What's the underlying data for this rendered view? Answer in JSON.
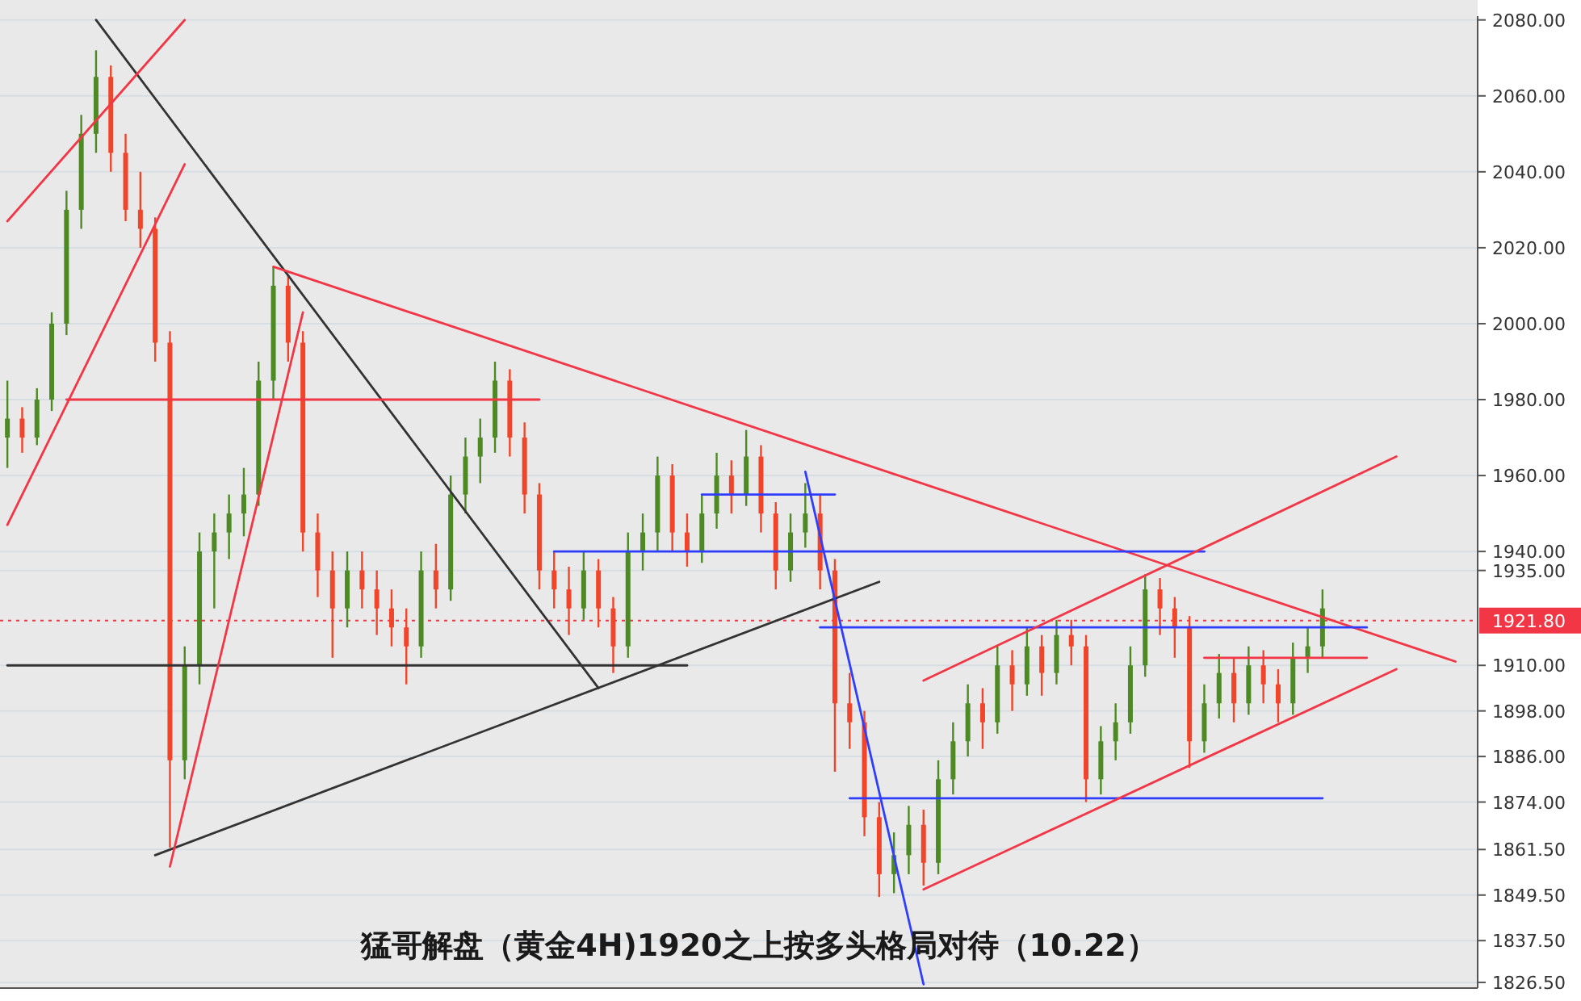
{
  "chart_data": {
    "type": "candlestick",
    "title": "猛哥解盘（黄金4H)1920之上按多头格局对待（10.22）",
    "categories": [
      null,
      null,
      null,
      null,
      null,
      null,
      null,
      null,
      null,
      null,
      null,
      null,
      null,
      null,
      null,
      null,
      null,
      null,
      null,
      null,
      null,
      null,
      null,
      null,
      null,
      null,
      null,
      null,
      null,
      null,
      null,
      null,
      null,
      null,
      null,
      null,
      null,
      null,
      null,
      null,
      null,
      null,
      null,
      null,
      null,
      null,
      null,
      null,
      null,
      null,
      null,
      null,
      null,
      null,
      null,
      null,
      null,
      null,
      null,
      null,
      null,
      null,
      null,
      null,
      null,
      null,
      null,
      null,
      null,
      null,
      null,
      null,
      null,
      null,
      null,
      null,
      null,
      null,
      null,
      null,
      null,
      null,
      null,
      null,
      null,
      null,
      null,
      null,
      null,
      null,
      null,
      null,
      null,
      null,
      null,
      null,
      null,
      null,
      null,
      null
    ],
    "ohlc": [
      [
        1970,
        1985,
        1962,
        1975
      ],
      [
        1975,
        1978,
        1966,
        1970
      ],
      [
        1970,
        1983,
        1968,
        1980
      ],
      [
        1980,
        2003,
        1977,
        2000
      ],
      [
        2000,
        2035,
        1997,
        2030
      ],
      [
        2030,
        2055,
        2025,
        2050
      ],
      [
        2050,
        2072,
        2045,
        2065
      ],
      [
        2065,
        2068,
        2040,
        2045
      ],
      [
        2045,
        2050,
        2027,
        2030
      ],
      [
        2030,
        2040,
        2020,
        2025
      ],
      [
        2025,
        2028,
        1990,
        1995
      ],
      [
        1995,
        1998,
        1862,
        1885
      ],
      [
        1885,
        1915,
        1880,
        1910
      ],
      [
        1910,
        1945,
        1905,
        1940
      ],
      [
        1940,
        1950,
        1925,
        1945
      ],
      [
        1945,
        1955,
        1938,
        1950
      ],
      [
        1950,
        1962,
        1944,
        1955
      ],
      [
        1955,
        1990,
        1952,
        1985
      ],
      [
        1985,
        2015,
        1980,
        2010
      ],
      [
        2010,
        2013,
        1990,
        1995
      ],
      [
        1995,
        1998,
        1940,
        1945
      ],
      [
        1945,
        1950,
        1928,
        1935
      ],
      [
        1935,
        1940,
        1912,
        1925
      ],
      [
        1925,
        1940,
        1920,
        1935
      ],
      [
        1935,
        1940,
        1925,
        1930
      ],
      [
        1930,
        1935,
        1918,
        1925
      ],
      [
        1925,
        1930,
        1915,
        1920
      ],
      [
        1920,
        1925,
        1905,
        1915
      ],
      [
        1915,
        1940,
        1912,
        1935
      ],
      [
        1935,
        1942,
        1925,
        1930
      ],
      [
        1930,
        1960,
        1927,
        1955
      ],
      [
        1955,
        1970,
        1950,
        1965
      ],
      [
        1965,
        1975,
        1958,
        1970
      ],
      [
        1970,
        1990,
        1966,
        1985
      ],
      [
        1985,
        1988,
        1965,
        1970
      ],
      [
        1970,
        1974,
        1950,
        1955
      ],
      [
        1955,
        1958,
        1930,
        1935
      ],
      [
        1935,
        1940,
        1925,
        1930
      ],
      [
        1930,
        1936,
        1918,
        1925
      ],
      [
        1925,
        1940,
        1922,
        1935
      ],
      [
        1935,
        1938,
        1920,
        1925
      ],
      [
        1925,
        1928,
        1908,
        1915
      ],
      [
        1915,
        1945,
        1912,
        1940
      ],
      [
        1940,
        1950,
        1935,
        1945
      ],
      [
        1945,
        1965,
        1940,
        1960
      ],
      [
        1960,
        1963,
        1940,
        1945
      ],
      [
        1945,
        1950,
        1936,
        1940
      ],
      [
        1940,
        1955,
        1937,
        1950
      ],
      [
        1950,
        1966,
        1946,
        1960
      ],
      [
        1960,
        1964,
        1950,
        1955
      ],
      [
        1955,
        1972,
        1952,
        1965
      ],
      [
        1965,
        1968,
        1945,
        1950
      ],
      [
        1950,
        1953,
        1930,
        1935
      ],
      [
        1935,
        1950,
        1932,
        1945
      ],
      [
        1945,
        1958,
        1941,
        1950
      ],
      [
        1950,
        1955,
        1930,
        1935
      ],
      [
        1935,
        1938,
        1882,
        1900
      ],
      [
        1900,
        1908,
        1888,
        1895
      ],
      [
        1895,
        1898,
        1865,
        1870
      ],
      [
        1870,
        1874,
        1849,
        1855
      ],
      [
        1855,
        1866,
        1850,
        1860
      ],
      [
        1860,
        1873,
        1855,
        1868
      ],
      [
        1868,
        1872,
        1852,
        1858
      ],
      [
        1858,
        1885,
        1855,
        1880
      ],
      [
        1880,
        1895,
        1876,
        1890
      ],
      [
        1890,
        1905,
        1886,
        1900
      ],
      [
        1900,
        1904,
        1888,
        1895
      ],
      [
        1895,
        1915,
        1892,
        1910
      ],
      [
        1910,
        1914,
        1898,
        1905
      ],
      [
        1905,
        1920,
        1902,
        1915
      ],
      [
        1915,
        1918,
        1902,
        1908
      ],
      [
        1908,
        1922,
        1905,
        1918
      ],
      [
        1918,
        1922,
        1910,
        1915
      ],
      [
        1915,
        1918,
        1874,
        1880
      ],
      [
        1880,
        1894,
        1876,
        1890
      ],
      [
        1890,
        1900,
        1885,
        1895
      ],
      [
        1895,
        1915,
        1892,
        1910
      ],
      [
        1910,
        1934,
        1907,
        1930
      ],
      [
        1930,
        1933,
        1918,
        1925
      ],
      [
        1925,
        1928,
        1912,
        1920
      ],
      [
        1920,
        1923,
        1883,
        1890
      ],
      [
        1890,
        1905,
        1887,
        1900
      ],
      [
        1900,
        1913,
        1896,
        1908
      ],
      [
        1908,
        1912,
        1895,
        1900
      ],
      [
        1900,
        1915,
        1897,
        1910
      ],
      [
        1910,
        1914,
        1900,
        1905
      ],
      [
        1905,
        1909,
        1895,
        1900
      ],
      [
        1900,
        1916,
        1897,
        1912
      ],
      [
        1912,
        1920,
        1908,
        1915
      ],
      [
        1915,
        1930,
        1912,
        1925
      ],
      null,
      null,
      null,
      null,
      null,
      null,
      null,
      null,
      null,
      null
    ],
    "colors": [
      "#4e8a24",
      "#f0452a",
      "#4e8a24",
      "#4e8a24",
      "#4e8a24",
      "#4e8a24",
      "#4e8a24",
      "#f0452a",
      "#f0452a",
      "#f0452a",
      "#f0452a",
      "#f0452a",
      "#4e8a24",
      "#4e8a24",
      "#4e8a24",
      "#4e8a24",
      "#4e8a24",
      "#4e8a24",
      "#4e8a24",
      "#f0452a",
      "#f0452a",
      "#f0452a",
      "#f0452a",
      "#4e8a24",
      "#f0452a",
      "#f0452a",
      "#f0452a",
      "#f0452a",
      "#4e8a24",
      "#f0452a",
      "#4e8a24",
      "#4e8a24",
      "#4e8a24",
      "#4e8a24",
      "#f0452a",
      "#f0452a",
      "#f0452a",
      "#f0452a",
      "#f0452a",
      "#4e8a24",
      "#f0452a",
      "#f0452a",
      "#4e8a24",
      "#4e8a24",
      "#4e8a24",
      "#f0452a",
      "#f0452a",
      "#4e8a24",
      "#4e8a24",
      "#f0452a",
      "#4e8a24",
      "#f0452a",
      "#f0452a",
      "#4e8a24",
      "#4e8a24",
      "#f0452a",
      "#f0452a",
      "#f0452a",
      "#f0452a",
      "#f0452a",
      "#4e8a24",
      "#4e8a24",
      "#f0452a",
      "#4e8a24",
      "#4e8a24",
      "#4e8a24",
      "#f0452a",
      "#4e8a24",
      "#f0452a",
      "#4e8a24",
      "#f0452a",
      "#4e8a24",
      "#f0452a",
      "#f0452a",
      "#4e8a24",
      "#4e8a24",
      "#4e8a24",
      "#4e8a24",
      "#f0452a",
      "#f0452a",
      "#f0452a",
      "#4e8a24",
      "#4e8a24",
      "#f0452a",
      "#4e8a24",
      "#f0452a",
      "#f0452a",
      "#4e8a24",
      "#4e8a24",
      "#4e8a24",
      null,
      null,
      null,
      null,
      null,
      null,
      null,
      null,
      null,
      null
    ],
    "series": [
      {
        "type": "line",
        "color": "#333333",
        "values": [
          null,
          null,
          null,
          null,
          null,
          null,
          2080,
          null,
          null,
          null,
          null,
          null,
          null,
          null,
          null,
          null,
          null,
          null,
          null,
          null,
          null,
          null,
          null,
          null,
          null,
          null,
          null,
          null,
          null,
          null,
          null,
          null,
          null,
          null,
          null,
          null,
          null,
          null,
          null,
          null,
          1904,
          null,
          null,
          null,
          null,
          null,
          null,
          null,
          null,
          null,
          null,
          null,
          null,
          null,
          null,
          null,
          null,
          null,
          null,
          null,
          null,
          null,
          null,
          null,
          null,
          null,
          null,
          null,
          null,
          null,
          null,
          null,
          null,
          null,
          null,
          null,
          null,
          null,
          null,
          null,
          null,
          null,
          null,
          null,
          null,
          null,
          null,
          null,
          null,
          null,
          null,
          null,
          null,
          null,
          null,
          null,
          null,
          null,
          null,
          null
        ]
      },
      {
        "type": "line",
        "color": "#333333",
        "values": [
          null,
          null,
          null,
          null,
          null,
          null,
          null,
          null,
          null,
          null,
          1860,
          null,
          null,
          null,
          null,
          null,
          null,
          null,
          null,
          null,
          null,
          null,
          null,
          null,
          null,
          null,
          null,
          null,
          null,
          null,
          null,
          null,
          null,
          null,
          null,
          null,
          null,
          null,
          null,
          null,
          null,
          null,
          null,
          null,
          null,
          null,
          null,
          null,
          null,
          null,
          null,
          null,
          null,
          null,
          null,
          null,
          null,
          null,
          null,
          1932,
          null,
          null,
          null,
          null,
          null,
          null,
          null,
          null,
          null,
          null,
          null,
          null,
          null,
          null,
          null,
          null,
          null,
          null,
          null,
          null,
          null,
          null,
          null,
          null,
          null,
          null,
          null,
          null,
          null,
          null,
          null,
          null,
          null,
          null,
          null,
          null,
          null,
          null,
          null,
          null
        ]
      },
      {
        "type": "line",
        "color": "#333333",
        "values": [
          1910,
          null,
          null,
          null,
          null,
          null,
          null,
          null,
          null,
          null,
          null,
          null,
          null,
          null,
          null,
          null,
          null,
          null,
          null,
          null,
          null,
          null,
          null,
          null,
          null,
          null,
          null,
          null,
          null,
          null,
          null,
          null,
          null,
          null,
          null,
          null,
          null,
          null,
          null,
          null,
          null,
          null,
          null,
          null,
          null,
          null,
          1910,
          null,
          null,
          null,
          null,
          null,
          null,
          null,
          null,
          null,
          null,
          null,
          null,
          null,
          null,
          null,
          null,
          null,
          null,
          null,
          null,
          null,
          null,
          null,
          null,
          null,
          null,
          null,
          null,
          null,
          null,
          null,
          null,
          null,
          null,
          null,
          null,
          null,
          null,
          null,
          null,
          null,
          null,
          null,
          null,
          null,
          null,
          null,
          null,
          null,
          null,
          null,
          null,
          null
        ]
      },
      {
        "type": "line",
        "color": "#f23645",
        "values": [
          null,
          null,
          null,
          null,
          null,
          null,
          null,
          null,
          null,
          null,
          null,
          null,
          null,
          null,
          null,
          null,
          null,
          null,
          2015,
          null,
          null,
          null,
          null,
          null,
          null,
          null,
          null,
          null,
          null,
          null,
          null,
          null,
          null,
          null,
          null,
          null,
          null,
          null,
          null,
          null,
          null,
          null,
          null,
          null,
          null,
          null,
          null,
          null,
          null,
          null,
          null,
          null,
          null,
          null,
          null,
          null,
          null,
          null,
          null,
          null,
          null,
          null,
          null,
          null,
          null,
          null,
          null,
          null,
          null,
          null,
          null,
          null,
          null,
          null,
          null,
          null,
          null,
          null,
          null,
          null,
          null,
          null,
          null,
          null,
          null,
          null,
          null,
          null,
          null,
          null,
          null,
          null,
          null,
          null,
          null,
          null,
          null,
          null,
          1911,
          null
        ]
      },
      {
        "type": "line",
        "color": "#f23645",
        "values": [
          null,
          null,
          null,
          null,
          null,
          null,
          null,
          null,
          null,
          null,
          null,
          1857,
          null,
          null,
          null,
          null,
          null,
          null,
          null,
          null,
          2003,
          null,
          null,
          null,
          null,
          null,
          null,
          null,
          null,
          null,
          null,
          null,
          null,
          null,
          null,
          null,
          null,
          null,
          null,
          null,
          null,
          null,
          null,
          null,
          null,
          null,
          null,
          null,
          null,
          null,
          null,
          null,
          null,
          null,
          null,
          null,
          null,
          null,
          null,
          null,
          null,
          null,
          null,
          null,
          null,
          null,
          null,
          null,
          null,
          null,
          null,
          null,
          null,
          null,
          null,
          null,
          null,
          null,
          null,
          null,
          null,
          null,
          null,
          null,
          null,
          null,
          null,
          null,
          null,
          null,
          null,
          null,
          null,
          null,
          null,
          null,
          null,
          null,
          null,
          null
        ]
      },
      {
        "type": "line",
        "color": "#f23645",
        "values": [
          null,
          null,
          null,
          null,
          1980,
          null,
          null,
          null,
          null,
          null,
          null,
          null,
          null,
          null,
          null,
          null,
          null,
          null,
          null,
          null,
          null,
          null,
          null,
          null,
          null,
          null,
          null,
          null,
          null,
          null,
          null,
          null,
          null,
          null,
          null,
          null,
          1980,
          null,
          null,
          null,
          null,
          null,
          null,
          null,
          null,
          null,
          null,
          null,
          null,
          null,
          null,
          null,
          null,
          null,
          null,
          null,
          null,
          null,
          null,
          null,
          null,
          null,
          null,
          null,
          null,
          null,
          null,
          null,
          null,
          null,
          null,
          null,
          null,
          null,
          null,
          null,
          null,
          null,
          null,
          null,
          null,
          null,
          null,
          null,
          null,
          null,
          null,
          null,
          null,
          null,
          null,
          null,
          null,
          null,
          null,
          null,
          null,
          null,
          null,
          null
        ]
      },
      {
        "type": "line",
        "color": "#f23645",
        "values": [
          2027,
          null,
          null,
          null,
          null,
          null,
          null,
          null,
          null,
          null,
          null,
          null,
          2080,
          null,
          null,
          null,
          null,
          null,
          null,
          null,
          null,
          null,
          null,
          null,
          null,
          null,
          null,
          null,
          null,
          null,
          null,
          null,
          null,
          null,
          null,
          null,
          null,
          null,
          null,
          null,
          null,
          null,
          null,
          null,
          null,
          null,
          null,
          null,
          null,
          null,
          null,
          null,
          null,
          null,
          null,
          null,
          null,
          null,
          null,
          null,
          null,
          null,
          null,
          null,
          null,
          null,
          null,
          null,
          null,
          null,
          null,
          null,
          null,
          null,
          null,
          null,
          null,
          null,
          null,
          null,
          null,
          null,
          null,
          null,
          null,
          null,
          null,
          null,
          null,
          null,
          null,
          null,
          null,
          null,
          null,
          null,
          null,
          null,
          null,
          null
        ]
      },
      {
        "type": "line",
        "color": "#f23645",
        "values": [
          1947,
          null,
          null,
          null,
          null,
          null,
          null,
          null,
          null,
          null,
          null,
          null,
          2042,
          null,
          null,
          null,
          null,
          null,
          null,
          null,
          null,
          null,
          null,
          null,
          null,
          null,
          null,
          null,
          null,
          null,
          null,
          null,
          null,
          null,
          null,
          null,
          null,
          null,
          null,
          null,
          null,
          null,
          null,
          null,
          null,
          null,
          null,
          null,
          null,
          null,
          null,
          null,
          null,
          null,
          null,
          null,
          null,
          null,
          null,
          null,
          null,
          null,
          null,
          null,
          null,
          null,
          null,
          null,
          null,
          null,
          null,
          null,
          null,
          null,
          null,
          null,
          null,
          null,
          null,
          null,
          null,
          null,
          null,
          null,
          null,
          null,
          null,
          null,
          null,
          null,
          null,
          null,
          null,
          null,
          null,
          null,
          null,
          null,
          null,
          null
        ]
      },
      {
        "type": "line",
        "color": "#2f3dff",
        "values": [
          null,
          null,
          null,
          null,
          null,
          null,
          null,
          null,
          null,
          null,
          null,
          null,
          null,
          null,
          null,
          null,
          null,
          null,
          null,
          null,
          null,
          null,
          null,
          null,
          null,
          null,
          null,
          null,
          null,
          null,
          null,
          null,
          null,
          null,
          null,
          null,
          null,
          null,
          null,
          null,
          null,
          null,
          null,
          null,
          null,
          null,
          null,
          null,
          null,
          null,
          null,
          null,
          null,
          null,
          1961,
          null,
          null,
          null,
          null,
          null,
          null,
          null,
          1826,
          null,
          null,
          null,
          null,
          null,
          null,
          null,
          null,
          null,
          null,
          null,
          null,
          null,
          null,
          null,
          null,
          null,
          null,
          null,
          null,
          null,
          null,
          null,
          null,
          null,
          null,
          null,
          null,
          null,
          null,
          null,
          null,
          null,
          null,
          null,
          null,
          null
        ]
      },
      {
        "type": "line",
        "color": "#2f3dff",
        "values": [
          null,
          null,
          null,
          null,
          null,
          null,
          null,
          null,
          null,
          null,
          null,
          null,
          null,
          null,
          null,
          null,
          null,
          null,
          null,
          null,
          null,
          null,
          null,
          null,
          null,
          null,
          null,
          null,
          null,
          null,
          null,
          null,
          null,
          null,
          null,
          null,
          null,
          null,
          null,
          null,
          null,
          null,
          null,
          null,
          null,
          null,
          null,
          1955,
          null,
          null,
          null,
          null,
          null,
          null,
          null,
          null,
          1955,
          null,
          null,
          null,
          null,
          null,
          null,
          null,
          null,
          null,
          null,
          null,
          null,
          null,
          null,
          null,
          null,
          null,
          null,
          null,
          null,
          null,
          null,
          null,
          null,
          null,
          null,
          null,
          null,
          null,
          null,
          null,
          null,
          null,
          null,
          null,
          null,
          null,
          null,
          null,
          null,
          null,
          null,
          null
        ]
      },
      {
        "type": "line",
        "color": "#2f3dff",
        "values": [
          null,
          null,
          null,
          null,
          null,
          null,
          null,
          null,
          null,
          null,
          null,
          null,
          null,
          null,
          null,
          null,
          null,
          null,
          null,
          null,
          null,
          null,
          null,
          null,
          null,
          null,
          null,
          null,
          null,
          null,
          null,
          null,
          null,
          null,
          null,
          null,
          null,
          1940,
          null,
          null,
          null,
          null,
          null,
          null,
          null,
          null,
          null,
          null,
          null,
          null,
          null,
          null,
          null,
          null,
          null,
          null,
          null,
          null,
          null,
          null,
          null,
          null,
          null,
          null,
          null,
          null,
          null,
          null,
          null,
          null,
          null,
          null,
          null,
          null,
          null,
          null,
          null,
          null,
          null,
          null,
          null,
          1940,
          null,
          null,
          null,
          null,
          null,
          null,
          null,
          null,
          null,
          null,
          null,
          null,
          null,
          null,
          null,
          null,
          null,
          null
        ]
      },
      {
        "type": "line",
        "color": "#2f3dff",
        "values": [
          null,
          null,
          null,
          null,
          null,
          null,
          null,
          null,
          null,
          null,
          null,
          null,
          null,
          null,
          null,
          null,
          null,
          null,
          null,
          null,
          null,
          null,
          null,
          null,
          null,
          null,
          null,
          null,
          null,
          null,
          null,
          null,
          null,
          null,
          null,
          null,
          null,
          null,
          null,
          null,
          null,
          null,
          null,
          null,
          null,
          null,
          null,
          null,
          null,
          null,
          null,
          null,
          null,
          null,
          null,
          1920,
          null,
          null,
          null,
          null,
          null,
          null,
          null,
          null,
          null,
          null,
          null,
          null,
          null,
          null,
          null,
          null,
          null,
          null,
          null,
          null,
          null,
          null,
          null,
          null,
          null,
          null,
          null,
          null,
          null,
          null,
          null,
          null,
          null,
          null,
          null,
          null,
          1920,
          null,
          null,
          null,
          null,
          null,
          null,
          null
        ]
      },
      {
        "type": "line",
        "color": "#2f3dff",
        "values": [
          null,
          null,
          null,
          null,
          null,
          null,
          null,
          null,
          null,
          null,
          null,
          null,
          null,
          null,
          null,
          null,
          null,
          null,
          null,
          null,
          null,
          null,
          null,
          null,
          null,
          null,
          null,
          null,
          null,
          null,
          null,
          null,
          null,
          null,
          null,
          null,
          null,
          null,
          null,
          null,
          null,
          null,
          null,
          null,
          null,
          null,
          null,
          null,
          null,
          null,
          null,
          null,
          null,
          null,
          null,
          null,
          null,
          1875,
          null,
          null,
          null,
          null,
          null,
          null,
          null,
          null,
          null,
          null,
          null,
          null,
          null,
          null,
          null,
          null,
          null,
          null,
          null,
          null,
          null,
          null,
          null,
          null,
          null,
          null,
          null,
          null,
          null,
          null,
          null,
          1875,
          null,
          null,
          null,
          null,
          null,
          null,
          null,
          null,
          null,
          null
        ]
      },
      {
        "type": "line",
        "color": "#f23645",
        "values": [
          null,
          null,
          null,
          null,
          null,
          null,
          null,
          null,
          null,
          null,
          null,
          null,
          null,
          null,
          null,
          null,
          null,
          null,
          null,
          null,
          null,
          null,
          null,
          null,
          null,
          null,
          null,
          null,
          null,
          null,
          null,
          null,
          null,
          null,
          null,
          null,
          null,
          null,
          null,
          null,
          null,
          null,
          null,
          null,
          null,
          null,
          null,
          null,
          null,
          null,
          null,
          null,
          null,
          null,
          null,
          null,
          null,
          null,
          null,
          null,
          null,
          null,
          1906,
          null,
          null,
          null,
          null,
          null,
          null,
          null,
          null,
          null,
          null,
          null,
          null,
          null,
          null,
          null,
          null,
          null,
          null,
          null,
          null,
          null,
          null,
          null,
          null,
          null,
          null,
          null,
          null,
          null,
          null,
          null,
          1965,
          null,
          null,
          null,
          null,
          null
        ]
      },
      {
        "type": "line",
        "color": "#f23645",
        "values": [
          null,
          null,
          null,
          null,
          null,
          null,
          null,
          null,
          null,
          null,
          null,
          null,
          null,
          null,
          null,
          null,
          null,
          null,
          null,
          null,
          null,
          null,
          null,
          null,
          null,
          null,
          null,
          null,
          null,
          null,
          null,
          null,
          null,
          null,
          null,
          null,
          null,
          null,
          null,
          null,
          null,
          null,
          null,
          null,
          null,
          null,
          null,
          null,
          null,
          null,
          null,
          null,
          null,
          null,
          null,
          null,
          null,
          null,
          null,
          null,
          null,
          null,
          1851,
          null,
          null,
          null,
          null,
          null,
          null,
          null,
          null,
          null,
          null,
          null,
          null,
          null,
          null,
          null,
          null,
          null,
          null,
          null,
          null,
          null,
          null,
          null,
          null,
          null,
          null,
          null,
          null,
          null,
          null,
          null,
          1909,
          null,
          null,
          null,
          null,
          null
        ]
      },
      {
        "type": "line",
        "color": "#f23645",
        "values": [
          null,
          null,
          null,
          null,
          null,
          null,
          null,
          null,
          null,
          null,
          null,
          null,
          null,
          null,
          null,
          null,
          null,
          null,
          null,
          null,
          null,
          null,
          null,
          null,
          null,
          null,
          null,
          null,
          null,
          null,
          null,
          null,
          null,
          null,
          null,
          null,
          null,
          null,
          null,
          null,
          null,
          null,
          null,
          null,
          null,
          null,
          null,
          null,
          null,
          null,
          null,
          null,
          null,
          null,
          null,
          null,
          null,
          null,
          null,
          null,
          null,
          null,
          null,
          null,
          null,
          null,
          null,
          null,
          null,
          null,
          null,
          null,
          null,
          null,
          null,
          null,
          null,
          null,
          null,
          null,
          null,
          1912,
          null,
          null,
          null,
          null,
          null,
          null,
          null,
          null,
          null,
          null,
          1912,
          null,
          null,
          null,
          null,
          null,
          null,
          null
        ]
      }
    ],
    "ref_lines": [
      {
        "axis": "y",
        "value": 1921.8,
        "label": "1921.80",
        "color": "#f23645",
        "line_style": "dotted"
      }
    ],
    "ylim": [
      1825,
      2081
    ],
    "yticks": [
      {
        "value": 1826.5,
        "label": "1826.50"
      },
      {
        "value": 1837.5,
        "label": "1837.50"
      },
      {
        "value": 1849.5,
        "label": "1849.50"
      },
      {
        "value": 1861.5,
        "label": "1861.50"
      },
      {
        "value": 1874,
        "label": "1874.00"
      },
      {
        "value": 1886,
        "label": "1886.00"
      },
      {
        "value": 1898,
        "label": "1898.00"
      },
      {
        "value": 1910,
        "label": "1910.00"
      },
      {
        "value": 1935,
        "label": "1935.00"
      },
      {
        "value": 1940,
        "label": "1940.00"
      },
      {
        "value": 1960,
        "label": "1960.00"
      },
      {
        "value": 1980,
        "label": "1980.00"
      },
      {
        "value": 2000,
        "label": "2000.00"
      },
      {
        "value": 2020,
        "label": "2020.00"
      },
      {
        "value": 2040,
        "label": "2040.00"
      },
      {
        "value": 2060,
        "label": "2060.00"
      },
      {
        "value": 2080,
        "label": "2080.00"
      }
    ],
    "grid": "y",
    "tick_labels": "y"
  }
}
